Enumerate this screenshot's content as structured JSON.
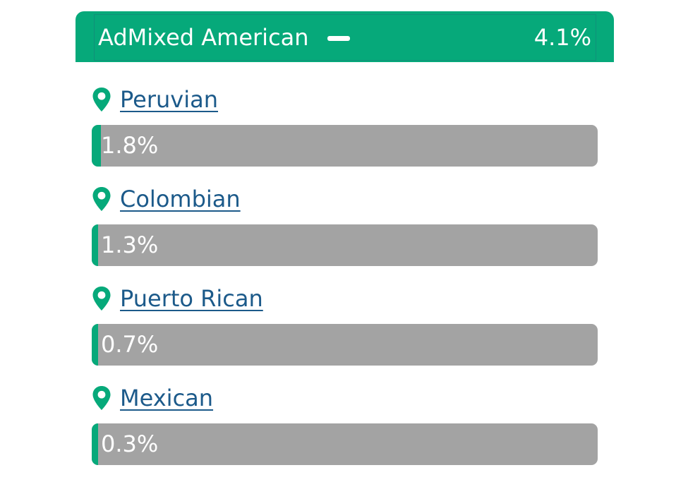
{
  "group": {
    "name": "AdMixed American",
    "percent": "4.1%",
    "collapse_icon": "minus-icon",
    "color": "#06a97a"
  },
  "items": [
    {
      "label": "Peruvian",
      "percent": "1.8%",
      "fraction": 0.018,
      "icon": "map-pin-icon"
    },
    {
      "label": "Colombian",
      "percent": "1.3%",
      "fraction": 0.013,
      "icon": "map-pin-icon"
    },
    {
      "label": "Puerto Rican",
      "percent": "0.7%",
      "fraction": 0.007,
      "icon": "map-pin-icon"
    },
    {
      "label": "Mexican",
      "percent": "0.3%",
      "fraction": 0.003,
      "icon": "map-pin-icon"
    }
  ],
  "colors": {
    "accent": "#06a97a",
    "link": "#1c5a8a",
    "bar_track": "#a3a3a3"
  }
}
